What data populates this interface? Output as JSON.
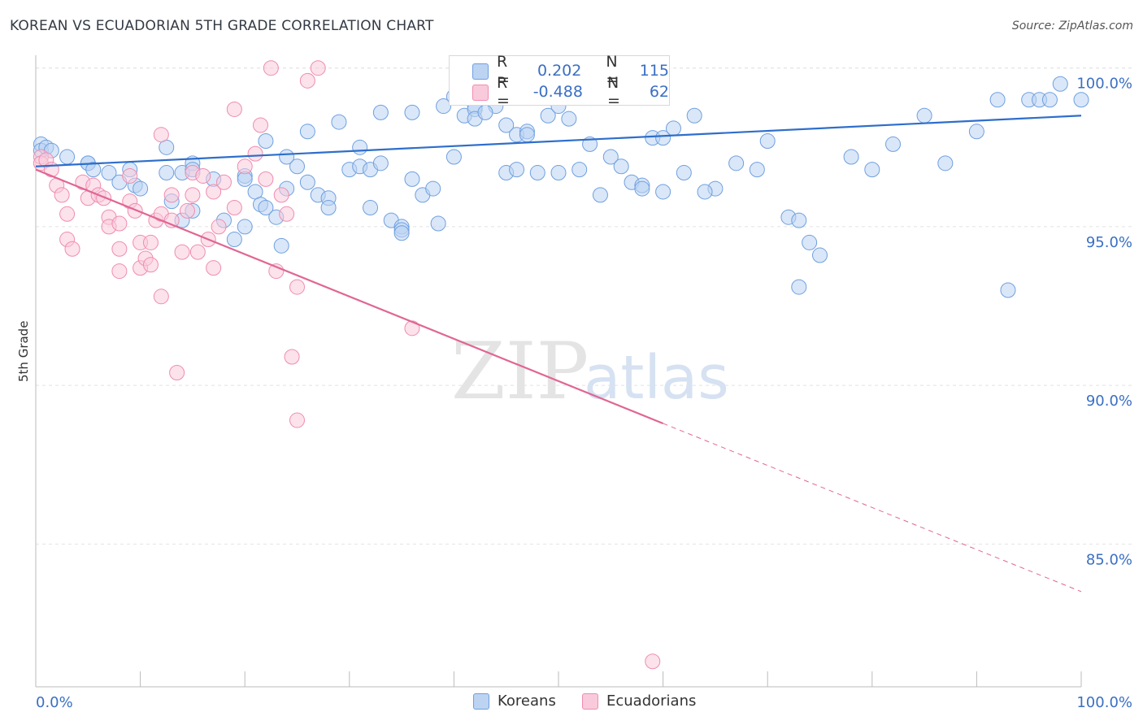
{
  "header": {
    "title": "KOREAN VS ECUADORIAN 5TH GRADE CORRELATION CHART",
    "source": "Source: ZipAtlas.com"
  },
  "legend_box": {
    "rows": [
      {
        "r_label": "R =",
        "r_value": "0.202",
        "n_label": "N =",
        "n_value": "115"
      },
      {
        "r_label": "R =",
        "r_value": "-0.488",
        "n_label": "N =",
        "n_value": "62"
      }
    ]
  },
  "watermark": {
    "zip": "ZIP",
    "atlas": "atlas"
  },
  "chart_data": {
    "type": "scatter",
    "title": "KOREAN VS ECUADORIAN 5TH GRADE CORRELATION CHART",
    "xlabel": "",
    "ylabel": "5th Grade",
    "xlim": [
      0,
      100
    ],
    "ylim": [
      80.5,
      100.3
    ],
    "x_tick_labels": [
      "0.0%",
      "100.0%"
    ],
    "y_ticks": [
      {
        "value": 100,
        "label": "100.0%"
      },
      {
        "value": 95,
        "label": "95.0%"
      },
      {
        "value": 90,
        "label": "90.0%"
      },
      {
        "value": 85,
        "label": "85.0%"
      }
    ],
    "grid": true,
    "legend_position": "bottom",
    "colors": {
      "koreans": "#6fa0e0",
      "koreans_line": "#2e6ecb",
      "ecuadorians": "#f08cb0",
      "ecuadorians_line": "#e06693"
    },
    "series": [
      {
        "name": "Koreans",
        "trend": {
          "x": [
            0,
            100
          ],
          "y": [
            96.9,
            98.5
          ]
        },
        "points": [
          [
            0.5,
            97.6
          ],
          [
            0.5,
            97.4
          ],
          [
            1,
            97.5
          ],
          [
            1.5,
            97.4
          ],
          [
            3,
            97.2
          ],
          [
            5,
            97.0
          ],
          [
            5,
            97.0
          ],
          [
            5.5,
            96.8
          ],
          [
            7,
            96.7
          ],
          [
            9,
            96.8
          ],
          [
            8,
            96.4
          ],
          [
            9.5,
            96.3
          ],
          [
            10,
            96.2
          ],
          [
            12.5,
            97.5
          ],
          [
            12.5,
            96.7
          ],
          [
            14,
            96.7
          ],
          [
            15,
            97.0
          ],
          [
            15,
            96.8
          ],
          [
            17,
            96.5
          ],
          [
            13,
            95.8
          ],
          [
            15,
            95.5
          ],
          [
            14,
            95.2
          ],
          [
            18,
            95.2
          ],
          [
            20,
            96.6
          ],
          [
            20,
            96.5
          ],
          [
            21,
            96.1
          ],
          [
            21.5,
            95.7
          ],
          [
            22,
            95.6
          ],
          [
            20,
            95.0
          ],
          [
            19,
            94.6
          ],
          [
            23,
            95.3
          ],
          [
            23.5,
            94.4
          ],
          [
            25,
            96.9
          ],
          [
            26,
            96.4
          ],
          [
            24,
            96.2
          ],
          [
            27,
            96.0
          ],
          [
            28,
            95.9
          ],
          [
            28,
            95.6
          ],
          [
            30,
            96.8
          ],
          [
            31,
            96.9
          ],
          [
            31,
            97.5
          ],
          [
            32,
            96.8
          ],
          [
            32,
            95.6
          ],
          [
            33,
            97.0
          ],
          [
            34,
            95.2
          ],
          [
            35,
            95.0
          ],
          [
            35,
            94.9
          ],
          [
            35,
            94.8
          ],
          [
            36,
            96.5
          ],
          [
            37,
            96.0
          ],
          [
            38,
            96.2
          ],
          [
            38.5,
            95.1
          ],
          [
            40,
            97.2
          ],
          [
            40,
            99.1
          ],
          [
            41,
            98.5
          ],
          [
            42,
            98.8
          ],
          [
            42,
            98.7
          ],
          [
            42,
            98.4
          ],
          [
            44,
            98.8
          ],
          [
            45,
            98.2
          ],
          [
            46,
            97.9
          ],
          [
            47,
            98.0
          ],
          [
            49,
            98.5
          ],
          [
            50,
            98.8
          ],
          [
            51,
            98.4
          ],
          [
            53,
            97.6
          ],
          [
            55,
            97.2
          ],
          [
            57,
            96.4
          ],
          [
            58,
            96.3
          ],
          [
            59,
            97.8
          ],
          [
            60,
            97.8
          ],
          [
            61,
            98.1
          ],
          [
            63,
            98.5
          ],
          [
            65,
            96.2
          ],
          [
            67,
            97.0
          ],
          [
            69,
            96.8
          ],
          [
            70,
            97.7
          ],
          [
            72,
            95.3
          ],
          [
            73,
            95.2
          ],
          [
            73,
            93.1
          ],
          [
            74,
            94.5
          ],
          [
            75,
            94.1
          ],
          [
            78,
            97.2
          ],
          [
            80,
            96.8
          ],
          [
            82,
            97.6
          ],
          [
            85,
            98.5
          ],
          [
            87,
            97.0
          ],
          [
            90,
            98.0
          ],
          [
            92,
            99.0
          ],
          [
            93,
            93.0
          ],
          [
            95,
            99.0
          ],
          [
            96,
            99.0
          ],
          [
            97,
            99.0
          ],
          [
            98,
            99.5
          ],
          [
            100,
            99.0
          ],
          [
            22,
            97.7
          ],
          [
            24,
            97.2
          ],
          [
            26,
            98.0
          ],
          [
            29,
            98.3
          ],
          [
            33,
            98.6
          ],
          [
            36,
            98.6
          ],
          [
            39,
            98.8
          ],
          [
            43,
            98.6
          ],
          [
            45,
            96.7
          ],
          [
            46,
            96.8
          ],
          [
            47,
            97.9
          ],
          [
            48,
            96.7
          ],
          [
            50,
            96.7
          ],
          [
            52,
            96.8
          ],
          [
            54,
            96.0
          ],
          [
            56,
            96.9
          ],
          [
            58,
            96.2
          ],
          [
            60,
            96.1
          ],
          [
            62,
            96.7
          ],
          [
            64,
            96.1
          ]
        ]
      },
      {
        "name": "Ecuadorians",
        "trend": {
          "x": [
            0,
            60
          ],
          "y": [
            96.8,
            88.8
          ]
        },
        "trend_dashed": {
          "x": [
            60,
            100
          ],
          "y": [
            88.8,
            83.5
          ]
        },
        "points": [
          [
            0.5,
            97.2
          ],
          [
            0.5,
            97.0
          ],
          [
            1,
            97.1
          ],
          [
            1.5,
            96.8
          ],
          [
            2,
            96.3
          ],
          [
            2.5,
            96.0
          ],
          [
            3,
            95.4
          ],
          [
            3,
            94.6
          ],
          [
            3.5,
            94.3
          ],
          [
            4.5,
            96.4
          ],
          [
            5,
            95.9
          ],
          [
            5.5,
            96.3
          ],
          [
            6,
            96.0
          ],
          [
            6.5,
            95.9
          ],
          [
            7,
            95.3
          ],
          [
            7,
            95.0
          ],
          [
            8,
            94.3
          ],
          [
            8,
            95.1
          ],
          [
            8,
            93.6
          ],
          [
            9,
            96.6
          ],
          [
            9,
            95.8
          ],
          [
            9.5,
            95.5
          ],
          [
            10,
            94.5
          ],
          [
            10,
            93.7
          ],
          [
            10.5,
            94.0
          ],
          [
            11,
            93.8
          ],
          [
            11,
            94.5
          ],
          [
            11.5,
            95.2
          ],
          [
            12,
            95.4
          ],
          [
            12,
            97.9
          ],
          [
            12,
            92.8
          ],
          [
            13,
            95.2
          ],
          [
            13,
            96.0
          ],
          [
            13.5,
            90.4
          ],
          [
            14,
            94.2
          ],
          [
            14.5,
            95.5
          ],
          [
            15,
            96.7
          ],
          [
            15,
            96.0
          ],
          [
            15.5,
            94.2
          ],
          [
            16,
            96.6
          ],
          [
            16.5,
            94.6
          ],
          [
            17,
            96.1
          ],
          [
            17,
            93.7
          ],
          [
            17.5,
            95.0
          ],
          [
            18,
            96.4
          ],
          [
            19,
            95.6
          ],
          [
            19,
            98.7
          ],
          [
            20,
            96.9
          ],
          [
            21,
            97.3
          ],
          [
            21.5,
            98.2
          ],
          [
            22,
            96.5
          ],
          [
            22.5,
            100.0
          ],
          [
            23,
            93.6
          ],
          [
            23.5,
            96.0
          ],
          [
            24,
            95.4
          ],
          [
            24.5,
            90.9
          ],
          [
            25,
            93.1
          ],
          [
            25,
            88.9
          ],
          [
            26,
            99.6
          ],
          [
            27,
            100.0
          ],
          [
            36,
            91.8
          ],
          [
            59,
            81.3
          ]
        ]
      }
    ]
  }
}
